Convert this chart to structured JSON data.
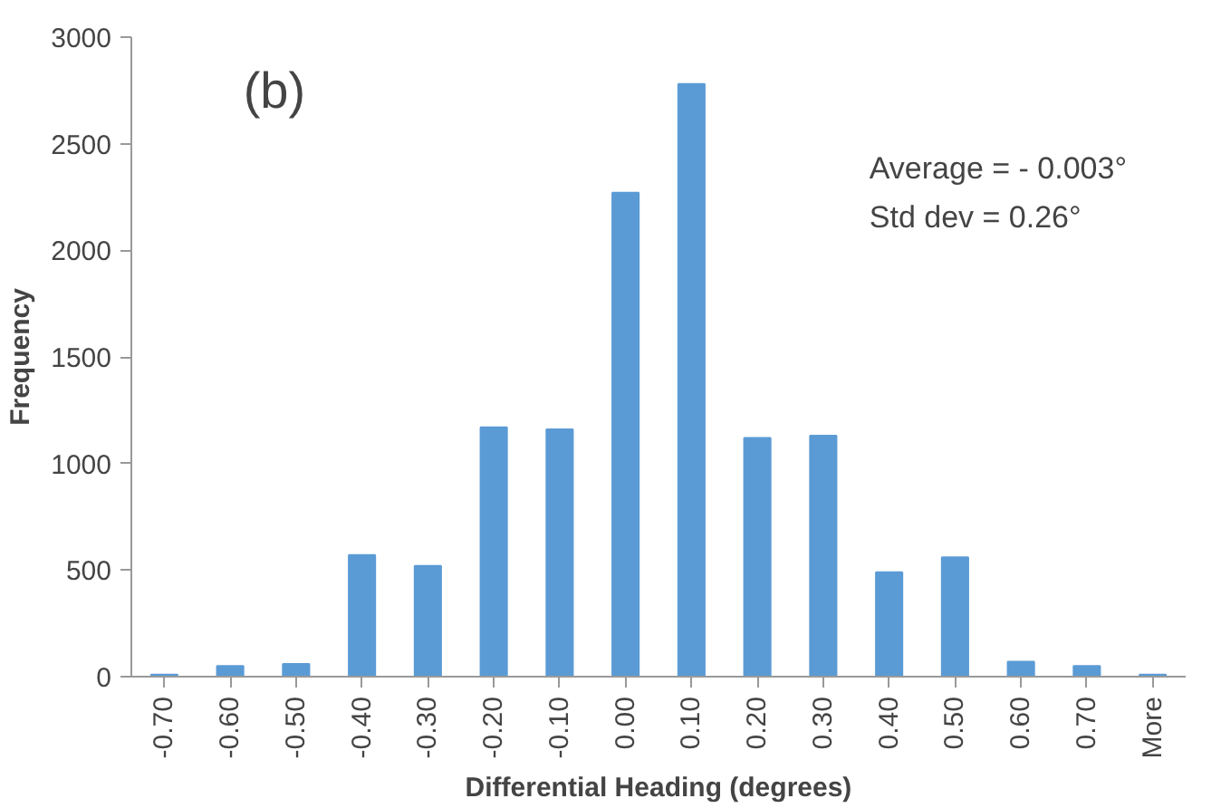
{
  "chart_data": {
    "type": "bar",
    "title": "(b)",
    "xlabel": "Differential Heading (degrees)",
    "ylabel": "Frequency",
    "categories": [
      "-0.70",
      "-0.60",
      "-0.50",
      "-0.40",
      "-0.30",
      "-0.20",
      "-0.10",
      "0.00",
      "0.10",
      "0.20",
      "0.30",
      "0.40",
      "0.50",
      "0.60",
      "0.70",
      "More"
    ],
    "values": [
      10,
      50,
      60,
      570,
      520,
      1170,
      1160,
      2270,
      2780,
      1120,
      1130,
      490,
      560,
      70,
      50,
      10
    ],
    "color": "#5b9bd5",
    "ylim": [
      0,
      3000
    ],
    "yticks": [
      0,
      500,
      1000,
      1500,
      2000,
      2500,
      3000
    ],
    "grid": false,
    "annotations": [
      "Average = - 0.003°",
      "Std dev = 0.26°"
    ]
  }
}
